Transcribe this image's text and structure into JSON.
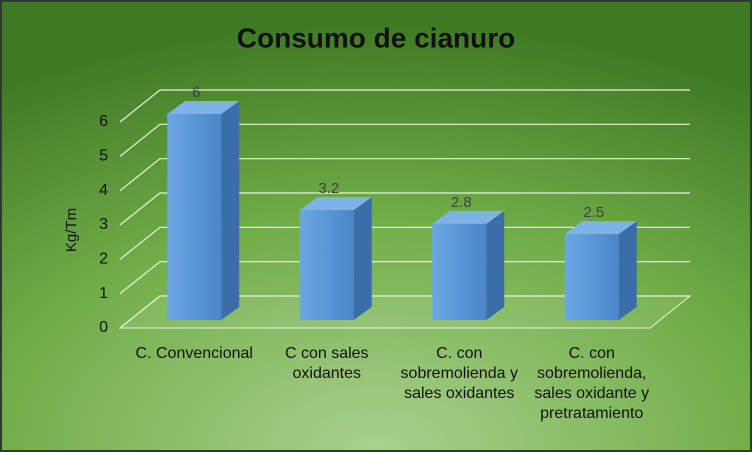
{
  "chart_data": {
    "type": "bar3d",
    "title": "Consumo de cianuro",
    "y_label": "Kg/Tm",
    "categories": [
      "C. Convencional",
      "C con sales oxidantes",
      "C. con sobremolienda y sales oxidantes",
      "C. con sobremolienda, sales oxidante y pretratamiento"
    ],
    "values": [
      6,
      3.2,
      2.8,
      2.5
    ],
    "color": "#5b9bd5",
    "ylim": [
      0,
      6
    ],
    "yticks": [
      0,
      1,
      2,
      3,
      4,
      5,
      6
    ],
    "grid": true
  }
}
